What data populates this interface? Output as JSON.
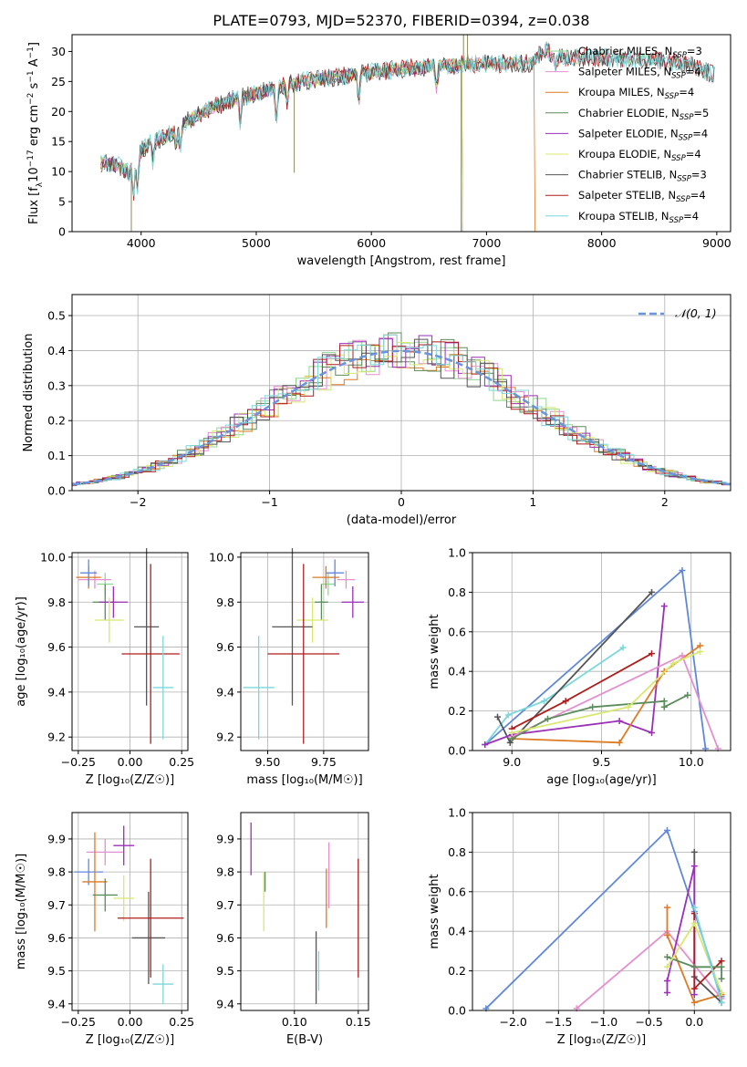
{
  "figure": {
    "title": "PLATE=0793, MJD=52370, FIBERID=0394, z=0.038"
  },
  "colors": {
    "Chabrier MILES": "#8fd88f",
    "Salpeter MILES": "#e58fd0",
    "Kroupa MILES": "#dd7a22",
    "Chabrier ELODIE": "#5b8c5b",
    "Salpeter ELODIE": "#9b2fb8",
    "Kroupa ELODIE": "#d8e870",
    "Chabrier STELIB": "#555555",
    "Salpeter STELIB": "#b01c1c",
    "Kroupa STELIB": "#7ad8dc",
    "Main blue": "#6088d8",
    "Normal curve": "#6a95dd"
  },
  "chart_data": [
    {
      "id": "spectrum",
      "type": "line",
      "title": "PLATE=0793, MJD=52370, FIBERID=0394, z=0.038",
      "xlabel": "wavelength [Angstrom, rest frame]",
      "ylabel_main": "Flux [f",
      "ylabel_sub1": "λ",
      "ylabel_mid": "10",
      "ylabel_sup1": "−17",
      "ylabel_end": " erg cm",
      "ylabel_sup2": "−2",
      "ylabel_s": " s",
      "ylabel_sup3": "−1",
      "ylabel_a": " A",
      "ylabel_sup4": "−1",
      "ylabel_close": "]",
      "xlim": [
        3400,
        9120
      ],
      "ylim": [
        0,
        32.8
      ],
      "xticks": [
        4000,
        5000,
        6000,
        7000,
        8000,
        9000
      ],
      "yticks": [
        0,
        5,
        10,
        15,
        20,
        25,
        30
      ],
      "continuum": [
        [
          3650,
          11.5
        ],
        [
          3800,
          11
        ],
        [
          3900,
          10
        ],
        [
          4000,
          13.5
        ],
        [
          4100,
          15
        ],
        [
          4200,
          15.5
        ],
        [
          4300,
          17
        ],
        [
          4400,
          18.5
        ],
        [
          4500,
          19.5
        ],
        [
          4600,
          20.5
        ],
        [
          4800,
          22
        ],
        [
          5000,
          23
        ],
        [
          5200,
          24
        ],
        [
          5400,
          25
        ],
        [
          5600,
          25.5
        ],
        [
          5800,
          26
        ],
        [
          6000,
          26.5
        ],
        [
          6200,
          27
        ],
        [
          6400,
          27.3
        ],
        [
          6600,
          27.6
        ],
        [
          6800,
          27.8
        ],
        [
          7000,
          28
        ],
        [
          7200,
          28
        ],
        [
          7400,
          28
        ],
        [
          7500,
          30.5
        ],
        [
          7600,
          29
        ],
        [
          7800,
          29
        ],
        [
          8000,
          29
        ],
        [
          8200,
          28.8
        ],
        [
          8400,
          28.6
        ],
        [
          8600,
          28.3
        ],
        [
          8800,
          27.8
        ],
        [
          8980,
          26
        ]
      ],
      "legend": [
        {
          "name": "Chabrier MILES",
          "sub": "SSP",
          "n": "3"
        },
        {
          "name": "Salpeter MILES",
          "sub": "SSP",
          "n": "4"
        },
        {
          "name": "Kroupa MILES",
          "sub": "SSP",
          "n": "4"
        },
        {
          "name": "Chabrier ELODIE",
          "sub": "SSP",
          "n": "5"
        },
        {
          "name": "Salpeter ELODIE",
          "sub": "SSP",
          "n": "4"
        },
        {
          "name": "Kroupa ELODIE",
          "sub": "SSP",
          "n": "4"
        },
        {
          "name": "Chabrier STELIB",
          "sub": "SSP",
          "n": "3"
        },
        {
          "name": "Salpeter STELIB",
          "sub": "SSP",
          "n": "4"
        },
        {
          "name": "Kroupa STELIB",
          "sub": "SSP",
          "n": "4"
        }
      ]
    },
    {
      "id": "residuals",
      "type": "histogram",
      "xlabel": "(data-model)/error",
      "ylabel": "Normed distribution",
      "xlim": [
        -2.5,
        2.5
      ],
      "ylim": [
        0,
        0.56
      ],
      "xticks": [
        -2,
        -1,
        0,
        1,
        2
      ],
      "yticks": [
        0.0,
        0.1,
        0.2,
        0.3,
        0.4,
        0.5
      ],
      "legend": "𝒩(0, 1)",
      "legend_position": "top-right",
      "grid": true
    },
    {
      "id": "age_vs_Z",
      "type": "scatter",
      "xlabel": "Z [log₁₀(Z/Z☉)]",
      "ylabel": "age  [log₁₀(age/yr)]",
      "xlim": [
        -0.28,
        0.28
      ],
      "ylim": [
        9.14,
        10.02
      ],
      "xticks": [
        -0.25,
        0.0,
        0.25
      ],
      "yticks": [
        9.2,
        9.4,
        9.6,
        9.8,
        10.0
      ],
      "points": [
        {
          "series": "Chabrier MILES",
          "x": -0.12,
          "y": 9.88,
          "xerr": 0.04,
          "yerr": 0.05
        },
        {
          "series": "Salpeter MILES",
          "x": -0.17,
          "y": 9.9,
          "xerr": 0.08,
          "yerr": 0.04
        },
        {
          "series": "Kroupa MILES",
          "x": -0.2,
          "y": 9.91,
          "xerr": 0.06,
          "yerr": 0.05
        },
        {
          "series": "Chabrier ELODIE",
          "x": -0.12,
          "y": 9.8,
          "xerr": 0.06,
          "yerr": 0.08
        },
        {
          "series": "Salpeter ELODIE",
          "x": -0.08,
          "y": 9.8,
          "xerr": 0.07,
          "yerr": 0.07
        },
        {
          "series": "Kroupa ELODIE",
          "x": -0.1,
          "y": 9.72,
          "xerr": 0.07,
          "yerr": 0.1
        },
        {
          "series": "Chabrier STELIB",
          "x": 0.08,
          "y": 9.69,
          "xerr": 0.06,
          "yerr": 0.35
        },
        {
          "series": "Salpeter STELIB",
          "x": 0.1,
          "y": 9.57,
          "xerr": 0.14,
          "yerr": 0.4
        },
        {
          "series": "Kroupa STELIB",
          "x": 0.16,
          "y": 9.42,
          "xerr": 0.05,
          "yerr": 0.23
        },
        {
          "series": "Main blue",
          "x": -0.2,
          "y": 9.93,
          "xerr": 0.04,
          "yerr": 0.06
        }
      ]
    },
    {
      "id": "age_vs_mass",
      "type": "scatter",
      "xlabel": "mass [log₁₀(M/M☉)]",
      "ylabel": "",
      "xlim": [
        9.38,
        9.95
      ],
      "ylim": [
        9.14,
        10.02
      ],
      "xticks": [
        9.5,
        9.75
      ],
      "yticks": [
        9.2,
        9.4,
        9.6,
        9.8,
        10.0
      ],
      "points": [
        {
          "series": "Chabrier MILES",
          "x": 9.77,
          "y": 9.88,
          "xerr": 0.03,
          "yerr": 0.05
        },
        {
          "series": "Salpeter MILES",
          "x": 9.85,
          "y": 9.9,
          "xerr": 0.04,
          "yerr": 0.04
        },
        {
          "series": "Kroupa MILES",
          "x": 9.76,
          "y": 9.91,
          "xerr": 0.06,
          "yerr": 0.05
        },
        {
          "series": "Chabrier ELODIE",
          "x": 9.74,
          "y": 9.8,
          "xerr": 0.03,
          "yerr": 0.08
        },
        {
          "series": "Salpeter ELODIE",
          "x": 9.88,
          "y": 9.8,
          "xerr": 0.05,
          "yerr": 0.07
        },
        {
          "series": "Kroupa ELODIE",
          "x": 9.7,
          "y": 9.72,
          "xerr": 0.07,
          "yerr": 0.1
        },
        {
          "series": "Chabrier STELIB",
          "x": 9.61,
          "y": 9.69,
          "xerr": 0.09,
          "yerr": 0.35
        },
        {
          "series": "Salpeter STELIB",
          "x": 9.66,
          "y": 9.57,
          "xerr": 0.16,
          "yerr": 0.4
        },
        {
          "series": "Kroupa STELIB",
          "x": 9.46,
          "y": 9.42,
          "xerr": 0.07,
          "yerr": 0.23
        },
        {
          "series": "Main blue",
          "x": 9.8,
          "y": 9.93,
          "xerr": 0.04,
          "yerr": 0.06
        }
      ]
    },
    {
      "id": "weight_vs_age",
      "type": "line",
      "xlabel": "age  [log₁₀(age/yr)]",
      "ylabel": "mass weight",
      "xlim": [
        8.78,
        10.22
      ],
      "ylim": [
        0,
        1.0
      ],
      "xticks": [
        9.0,
        9.5,
        10.0
      ],
      "yticks": [
        0.0,
        0.2,
        0.4,
        0.6,
        0.8,
        1.0
      ],
      "series": [
        {
          "name": "Main blue",
          "points": [
            [
              8.85,
              0.03
            ],
            [
              9.95,
              0.91
            ],
            [
              10.08,
              0.01
            ]
          ]
        },
        {
          "name": "Kroupa STELIB",
          "points": [
            [
              8.85,
              0.03
            ],
            [
              8.98,
              0.18
            ],
            [
              9.18,
              0.25
            ],
            [
              9.62,
              0.52
            ]
          ]
        },
        {
          "name": "Chabrier STELIB",
          "points": [
            [
              8.92,
              0.17
            ],
            [
              8.99,
              0.04
            ],
            [
              9.78,
              0.8
            ]
          ]
        },
        {
          "name": "Salpeter STELIB",
          "points": [
            [
              9.0,
              0.11
            ],
            [
              9.3,
              0.25
            ],
            [
              9.78,
              0.49
            ]
          ]
        },
        {
          "name": "Salpeter ELODIE",
          "points": [
            [
              8.85,
              0.03
            ],
            [
              9.0,
              0.08
            ],
            [
              9.6,
              0.15
            ],
            [
              9.78,
              0.09
            ],
            [
              9.85,
              0.73
            ]
          ]
        },
        {
          "name": "Kroupa MILES",
          "points": [
            [
              9.0,
              0.06
            ],
            [
              9.6,
              0.04
            ],
            [
              9.85,
              0.4
            ],
            [
              10.05,
              0.53
            ]
          ]
        },
        {
          "name": "Salpeter MILES",
          "points": [
            [
              9.0,
              0.07
            ],
            [
              9.95,
              0.48
            ],
            [
              10.15,
              0.01
            ]
          ]
        },
        {
          "name": "Chabrier ELODIE",
          "points": [
            [
              9.0,
              0.06
            ],
            [
              9.2,
              0.16
            ],
            [
              9.45,
              0.22
            ],
            [
              9.85,
              0.25
            ],
            [
              9.85,
              0.22
            ],
            [
              9.98,
              0.28
            ]
          ]
        },
        {
          "name": "Kroupa ELODIE",
          "points": [
            [
              9.0,
              0.09
            ],
            [
              9.65,
              0.22
            ],
            [
              9.9,
              0.44
            ],
            [
              10.05,
              0.5
            ]
          ]
        }
      ]
    },
    {
      "id": "mass_vs_Z",
      "type": "scatter",
      "xlabel": "Z [log₁₀(Z/Z☉)]",
      "ylabel": "mass [log₁₀(M/M☉)]",
      "xlim": [
        -0.28,
        0.28
      ],
      "ylim": [
        9.38,
        9.98
      ],
      "xticks": [
        -0.25,
        0.0,
        0.25
      ],
      "yticks": [
        9.4,
        9.5,
        9.6,
        9.7,
        9.8,
        9.9
      ],
      "points": [
        {
          "series": "Salpeter MILES",
          "x": -0.12,
          "y": 9.86,
          "xerr": 0.09,
          "yerr": 0.04
        },
        {
          "series": "Salpeter ELODIE",
          "x": -0.03,
          "y": 9.88,
          "xerr": 0.05,
          "yerr": 0.06
        },
        {
          "series": "Main blue",
          "x": -0.2,
          "y": 9.8,
          "xerr": 0.07,
          "yerr": 0.04
        },
        {
          "series": "Kroupa MILES",
          "x": -0.17,
          "y": 9.77,
          "xerr": 0.06,
          "yerr": 0.15
        },
        {
          "series": "Chabrier ELODIE",
          "x": -0.12,
          "y": 9.73,
          "xerr": 0.06,
          "yerr": 0.05
        },
        {
          "series": "Kroupa ELODIE",
          "x": -0.03,
          "y": 9.72,
          "xerr": 0.05,
          "yerr": 0.07
        },
        {
          "series": "Chabrier STELIB",
          "x": 0.09,
          "y": 9.6,
          "xerr": 0.08,
          "yerr": 0.14
        },
        {
          "series": "Salpeter STELIB",
          "x": 0.1,
          "y": 9.66,
          "xerr": 0.16,
          "yerr": 0.18
        },
        {
          "series": "Kroupa STELIB",
          "x": 0.16,
          "y": 9.46,
          "xerr": 0.05,
          "yerr": 0.06
        }
      ]
    },
    {
      "id": "mass_vs_ebv",
      "type": "scatter",
      "xlabel": "E(B-V)",
      "ylabel": "",
      "xlim": [
        0.058,
        0.158
      ],
      "ylim": [
        9.38,
        9.98
      ],
      "xticks": [
        0.1,
        0.15
      ],
      "yticks": [
        9.4,
        9.5,
        9.6,
        9.7,
        9.8,
        9.9
      ],
      "points": [
        {
          "series": "Salpeter ELODIE",
          "x": 0.066,
          "y": 9.87,
          "yerr": 0.08
        },
        {
          "series": "Kroupa ELODIE",
          "x": 0.076,
          "y": 9.71,
          "yerr": 0.09
        },
        {
          "series": "Chabrier ELODIE",
          "x": 0.077,
          "y": 9.77,
          "yerr": 0.03
        },
        {
          "series": "Chabrier STELIB",
          "x": 0.117,
          "y": 9.51,
          "yerr": 0.11
        },
        {
          "series": "Kroupa STELIB",
          "x": 0.119,
          "y": 9.5,
          "yerr": 0.06
        },
        {
          "series": "Kroupa MILES",
          "x": 0.125,
          "y": 9.72,
          "yerr": 0.09
        },
        {
          "series": "Salpeter MILES",
          "x": 0.127,
          "y": 9.79,
          "yerr": 0.1
        },
        {
          "series": "Salpeter STELIB",
          "x": 0.15,
          "y": 9.66,
          "yerr": 0.18
        }
      ]
    },
    {
      "id": "weight_vs_Z",
      "type": "line",
      "xlabel": "Z [log₁₀(Z/Z☉)]",
      "ylabel": "mass weight",
      "xlim": [
        -2.45,
        0.4
      ],
      "ylim": [
        0,
        1.0
      ],
      "xticks": [
        -2.0,
        -1.5,
        -1.0,
        -0.5,
        0.0
      ],
      "yticks": [
        0.0,
        0.2,
        0.4,
        0.6,
        0.8,
        1.0
      ],
      "series": [
        {
          "name": "Main blue",
          "points": [
            [
              -2.3,
              0.01
            ],
            [
              -0.3,
              0.91
            ],
            [
              0.0,
              0.5
            ],
            [
              0.3,
              0.07
            ]
          ]
        },
        {
          "name": "Salpeter MILES",
          "points": [
            [
              -1.3,
              0.01
            ],
            [
              -0.3,
              0.4
            ],
            [
              0.3,
              0.06
            ]
          ]
        },
        {
          "name": "Kroupa MILES",
          "points": [
            [
              -0.3,
              0.52
            ],
            [
              -0.3,
              0.38
            ],
            [
              0.0,
              0.04
            ],
            [
              0.3,
              0.08
            ]
          ]
        },
        {
          "name": "Chabrier STELIB",
          "points": [
            [
              0.0,
              0.8
            ],
            [
              0.0,
              0.17
            ],
            [
              0.3,
              0.04
            ]
          ]
        },
        {
          "name": "Salpeter ELODIE",
          "points": [
            [
              -0.3,
              0.09
            ],
            [
              -0.3,
              0.15
            ],
            [
              0.0,
              0.73
            ],
            [
              0.0,
              0.08
            ]
          ]
        },
        {
          "name": "Salpeter STELIB",
          "points": [
            [
              0.0,
              0.49
            ],
            [
              0.0,
              0.11
            ],
            [
              0.3,
              0.25
            ]
          ]
        },
        {
          "name": "Chabrier ELODIE",
          "points": [
            [
              -0.3,
              0.27
            ],
            [
              0.0,
              0.22
            ],
            [
              0.3,
              0.22
            ],
            [
              0.3,
              0.16
            ]
          ]
        },
        {
          "name": "Kroupa ELODIE",
          "points": [
            [
              -0.3,
              0.22
            ],
            [
              0.0,
              0.44
            ],
            [
              0.3,
              0.09
            ]
          ]
        },
        {
          "name": "Kroupa STELIB",
          "points": [
            [
              0.0,
              0.52
            ],
            [
              0.3,
              0.04
            ]
          ]
        }
      ]
    }
  ]
}
